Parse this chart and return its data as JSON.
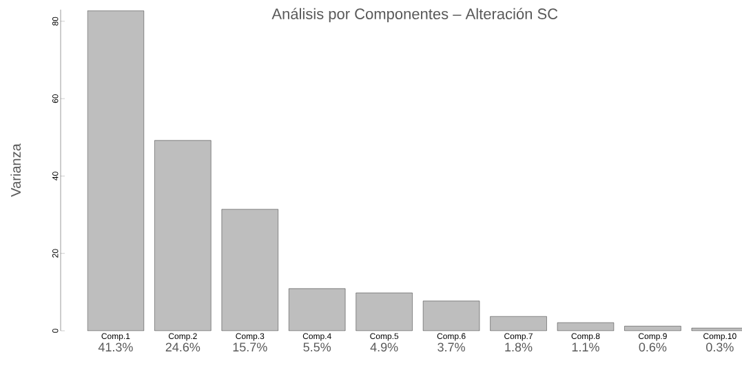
{
  "chart_data": {
    "type": "bar",
    "title": "Análisis por Componentes – Alteración SC",
    "ylabel": "Varianza",
    "categories": [
      "Comp.1",
      "Comp.2",
      "Comp.3",
      "Comp.4",
      "Comp.5",
      "Comp.6",
      "Comp.7",
      "Comp.8",
      "Comp.9",
      "Comp.10"
    ],
    "values": [
      82.7,
      49.2,
      31.4,
      10.9,
      9.8,
      7.7,
      3.7,
      2.1,
      1.2,
      0.7
    ],
    "annotations": [
      "41.3%",
      "24.6%",
      "15.7%",
      "5.5%",
      "4.9%",
      "3.7%",
      "1.8%",
      "1.1%",
      "0.6%",
      "0.3%"
    ],
    "color": "#bebebe",
    "ylim": [
      0,
      83
    ],
    "yticks": [
      0,
      20,
      40,
      60,
      80
    ],
    "grid": false
  }
}
